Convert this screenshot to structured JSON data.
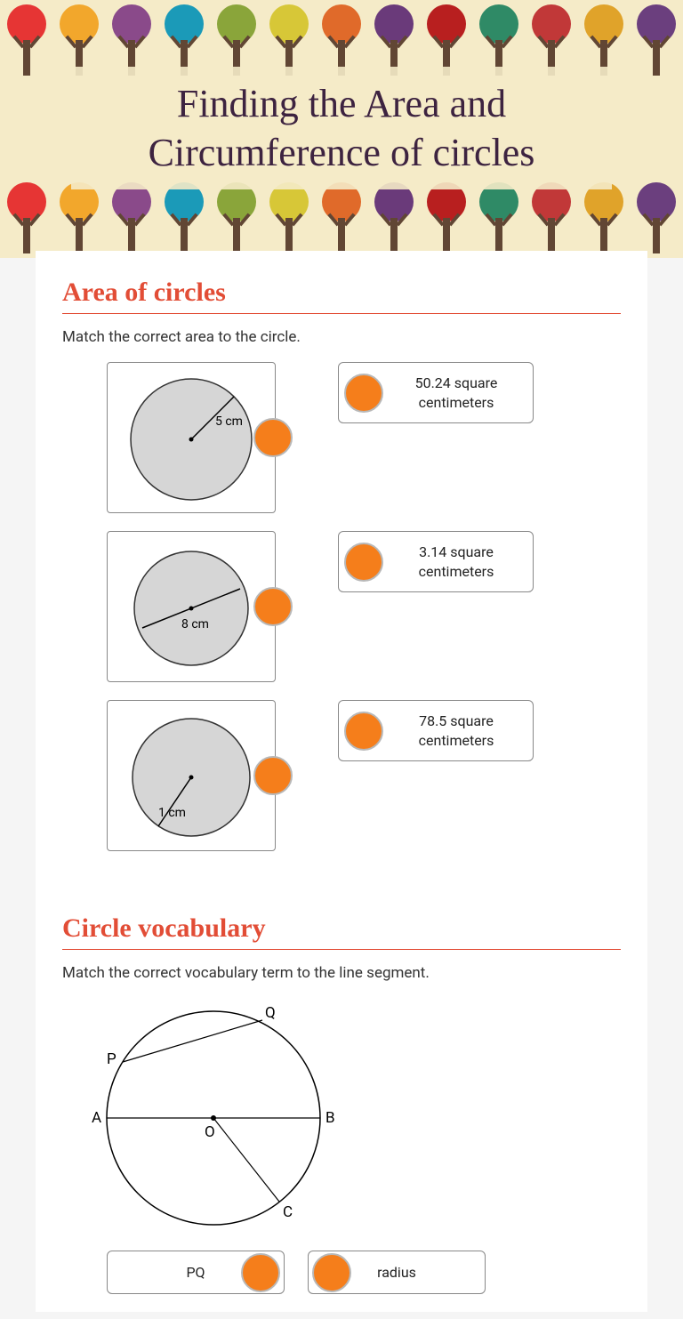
{
  "header": {
    "title": "Finding the Area and Circumference of circles",
    "title_color": "#3d2340",
    "title_fontfamily": "Brush Script MT, cursive",
    "title_fontsize": 44,
    "band_bg": "#f5ebc8",
    "tree_colors": [
      "#e63534",
      "#f2a72c",
      "#8a4a8a",
      "#1b9ab8",
      "#8aa53a",
      "#d7c737",
      "#e06a2a",
      "#6a3a7a",
      "#b81f1f",
      "#2f8a66",
      "#c13838",
      "#e0a32a",
      "#6b3f7e"
    ]
  },
  "section1": {
    "heading": "Area of circles",
    "heading_color": "#e24d36",
    "instruction": "Match the correct area to the circle.",
    "dot_color": "#f57e1b",
    "dot_border": "#b8b8b8",
    "circles": [
      {
        "label": "5 cm",
        "type": "radius"
      },
      {
        "label": "8 cm",
        "type": "diameter"
      },
      {
        "label": "1 cm",
        "type": "radius-down"
      }
    ],
    "answers": [
      "50.24 square centimeters",
      "3.14 square centimeters",
      "78.5 square centimeters"
    ],
    "circle_fill": "#d6d6d6",
    "circle_stroke": "#333"
  },
  "section2": {
    "heading": "Circle vocabulary",
    "instruction": "Match the correct vocabulary term to the line segment.",
    "points": {
      "O": "O",
      "A": "A",
      "B": "B",
      "P": "P",
      "Q": "Q",
      "C": "C"
    },
    "left_card": "PQ",
    "right_card": "radius"
  }
}
